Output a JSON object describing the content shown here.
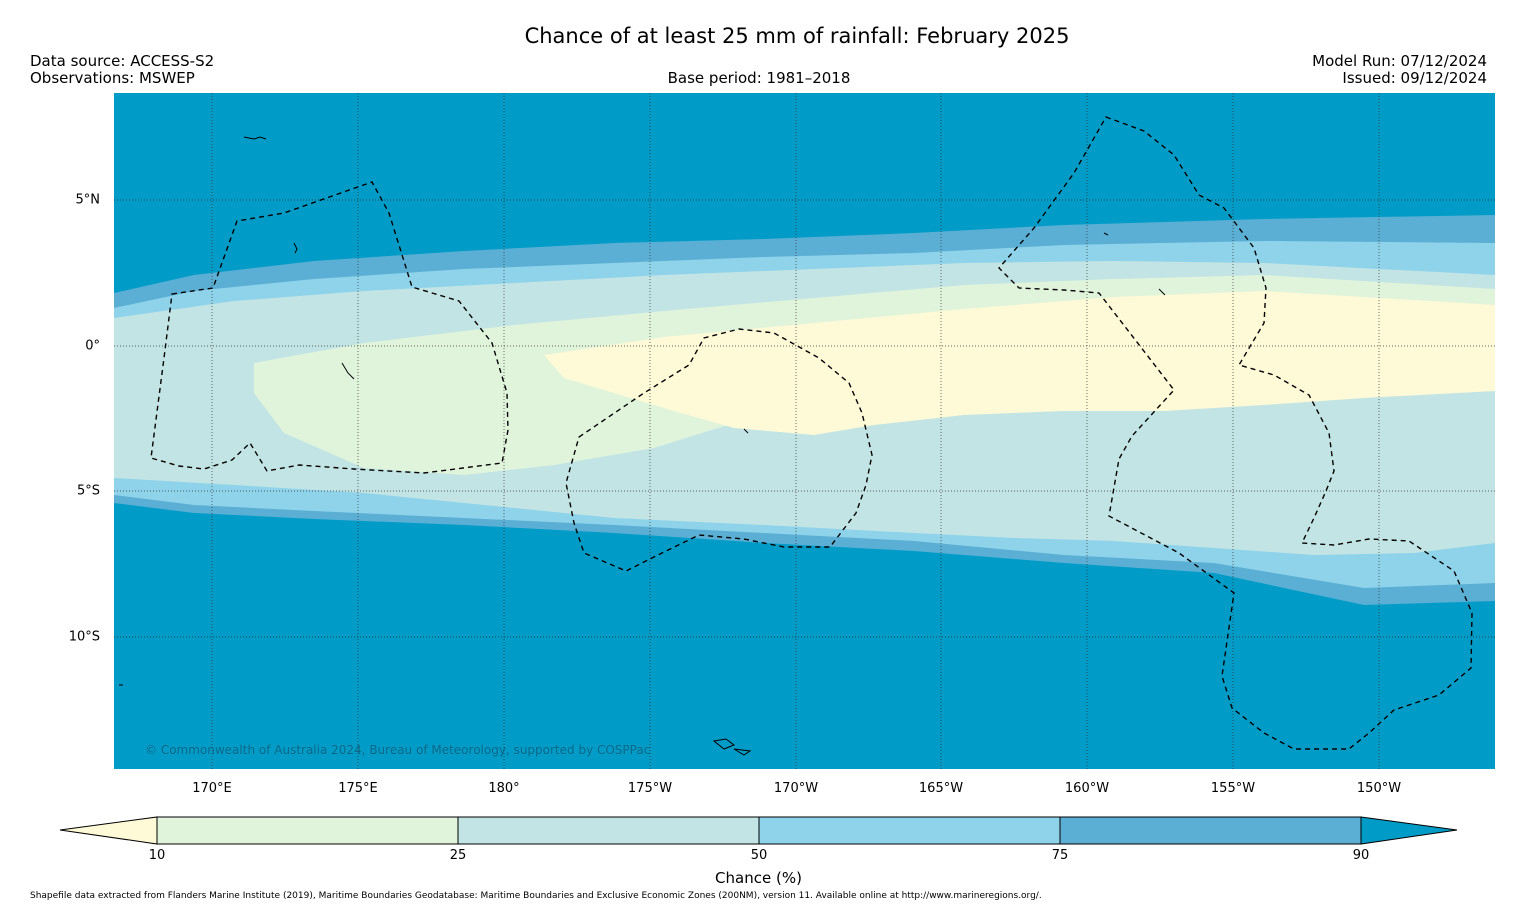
{
  "header": {
    "title": "Chance of at least 25 mm of rainfall: February 2025",
    "data_source": "Data source: ACCESS-S2",
    "observations": "Observations: MSWEP",
    "base_period": "Base period: 1981–2018",
    "model_run": "Model Run: 07/12/2024",
    "issued": "Issued: 09/12/2024"
  },
  "map": {
    "lon_labels": [
      "170°E",
      "175°E",
      "180°",
      "175°W",
      "170°W",
      "165°W",
      "160°W",
      "155°W",
      "150°W"
    ],
    "lat_labels": [
      "5°N",
      "0°",
      "5°S",
      "10°S"
    ],
    "copyright": "© Commonwealth of Australia 2024, Bureau of Meteorology, supported by COSPPac",
    "colors": {
      "p0_10": "#fef9d6",
      "p10_25": "#e0f4db",
      "p25_50": "#c2e4e5",
      "p50_75": "#8ed3ea",
      "p75_90": "#5bafd4",
      "p90_100": "#009cc7"
    }
  },
  "colorbar": {
    "ticks": [
      "10",
      "25",
      "50",
      "75",
      "90"
    ],
    "label": "Chance (%)"
  },
  "footer": {
    "credit": "Shapefile data extracted from Flanders Marine Institute (2019), Maritime Boundaries Geodatabase: Maritime Boundaries and Exclusive Economic Zones (200NM), version 11. Available online at http://www.marineregions.org/."
  }
}
